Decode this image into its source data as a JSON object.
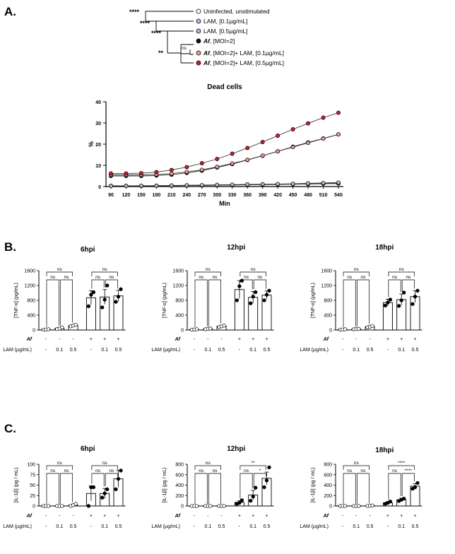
{
  "panels": {
    "A": "A.",
    "B": "B.",
    "C": "C."
  },
  "legend": {
    "items": [
      {
        "prefix": "",
        "label": "Uninfected, unstimulated",
        "fill": "#ffffff"
      },
      {
        "prefix": "",
        "label": "LAM, [0.1µg/mL]",
        "fill": "#a8bfe0"
      },
      {
        "prefix": "",
        "label": "LAM, [0.5µg/mL]",
        "fill": "#b9b3cf"
      },
      {
        "prefix": "Af",
        "label": ", [MOI=2]",
        "fill": "#111111"
      },
      {
        "prefix": "Af",
        "label": ", [MOI=2]+ LAM, [0.1µg/mL]",
        "fill": "#e79aa3"
      },
      {
        "prefix": "Af",
        "label": ", [MOI=2]+ LAM, [0.5µg/mL]",
        "fill": "#cc1e2b"
      }
    ],
    "tree_sig": [
      "****",
      "****",
      "****",
      "**",
      "ns"
    ]
  },
  "colors": {
    "red": "#cc1e2b",
    "pink": "#e79aa3",
    "black": "#111111",
    "white": "#ffffff"
  },
  "chart_data": [
    {
      "id": "dead_cells",
      "type": "line",
      "title": "Dead cells",
      "xlabel": "Min",
      "ylabel": "%",
      "x": [
        90,
        120,
        150,
        180,
        210,
        240,
        270,
        300,
        330,
        360,
        390,
        420,
        450,
        480,
        510,
        540
      ],
      "ylim": [
        0,
        40
      ],
      "yticks": [
        0,
        10,
        20,
        30,
        40
      ],
      "series": [
        {
          "name": "Uninfected, unstimulated",
          "color": "#ffffff",
          "values": [
            0.3,
            0.3,
            0.3,
            0.4,
            0.4,
            0.5,
            0.5,
            0.6,
            0.7,
            0.8,
            0.9,
            1.0,
            1.1,
            1.2,
            1.3,
            1.4
          ]
        },
        {
          "name": "LAM, [0.1µg/mL]",
          "color": "#a8bfe0",
          "values": [
            0.3,
            0.3,
            0.3,
            0.4,
            0.4,
            0.5,
            0.6,
            0.7,
            0.8,
            0.9,
            1.0,
            1.1,
            1.2,
            1.3,
            1.5,
            1.6
          ]
        },
        {
          "name": "LAM, [0.5µg/mL]",
          "color": "#b9b3cf",
          "values": [
            0.3,
            0.3,
            0.4,
            0.4,
            0.5,
            0.6,
            0.7,
            0.8,
            0.9,
            1.0,
            1.1,
            1.2,
            1.3,
            1.5,
            1.7,
            1.9
          ]
        },
        {
          "name": "Af, [MOI=2]",
          "color": "#111111",
          "values": [
            5.0,
            5.0,
            5.0,
            5.2,
            5.6,
            6.4,
            7.5,
            9.0,
            10.6,
            12.5,
            14.5,
            16.6,
            18.8,
            20.8,
            22.7,
            24.6
          ]
        },
        {
          "name": "Af, [MOI=2]+ LAM, [0.1µg/mL]",
          "color": "#e79aa3",
          "values": [
            5.5,
            5.5,
            5.5,
            5.7,
            6.1,
            6.9,
            7.9,
            9.3,
            10.9,
            12.6,
            14.6,
            16.6,
            18.6,
            20.6,
            22.6,
            24.6
          ]
        },
        {
          "name": "Af, [MOI=2]+ LAM, [0.5µg/mL]",
          "color": "#cc1e2b",
          "values": [
            6.2,
            6.2,
            6.3,
            6.8,
            7.8,
            9.2,
            11.0,
            13.0,
            15.5,
            18.2,
            21.0,
            24.0,
            27.0,
            29.8,
            32.5,
            34.8
          ]
        }
      ]
    },
    {
      "id": "tnf_6",
      "type": "bar",
      "title": "6hpi",
      "ylabel": "[TNF-α] (pg/mL)",
      "ylim": [
        0,
        1600
      ],
      "yticks": [
        0,
        400,
        800,
        1200,
        1600
      ],
      "af_row": [
        "-",
        "-",
        "-",
        "+",
        "+",
        "+"
      ],
      "lam_row": [
        "-",
        "0.1",
        "0.5",
        "-",
        "0.1",
        "0.5"
      ],
      "row_labels": {
        "af": "Af",
        "lam": "LAM (µg/mL)"
      },
      "values": [
        15,
        45,
        120,
        870,
        890,
        920
      ],
      "errors": [
        8,
        20,
        20,
        190,
        200,
        150
      ],
      "points": [
        [
          10,
          15,
          20
        ],
        [
          25,
          40,
          70
        ],
        [
          100,
          120,
          140
        ],
        [
          640,
          950,
          1020
        ],
        [
          610,
          820,
          1200
        ],
        [
          760,
          900,
          1100
        ]
      ],
      "sig": [
        {
          "a": 0,
          "b": 1,
          "label": "ns",
          "level": 1
        },
        {
          "a": 1,
          "b": 2,
          "label": "ns",
          "level": 1
        },
        {
          "a": 0,
          "b": 2,
          "label": "ns",
          "level": 2
        },
        {
          "a": 3,
          "b": 4,
          "label": "ns",
          "level": 1
        },
        {
          "a": 4,
          "b": 5,
          "label": "ns",
          "level": 1
        },
        {
          "a": 3,
          "b": 5,
          "label": "ns",
          "level": 2
        }
      ]
    },
    {
      "id": "tnf_12",
      "type": "bar",
      "title": "12hpi",
      "ylabel": "[TNF-α] (pg/mL)",
      "ylim": [
        0,
        1600
      ],
      "yticks": [
        0,
        400,
        800,
        1200,
        1600
      ],
      "af_row": [
        "-",
        "-",
        "-",
        "+",
        "+",
        "+"
      ],
      "lam_row": [
        "-",
        "0.1",
        "0.5",
        "-",
        "0.1",
        "0.5"
      ],
      "row_labels": {
        "af": "Af",
        "lam": "LAM (µg/mL)"
      },
      "values": [
        15,
        30,
        100,
        1090,
        880,
        940
      ],
      "errors": [
        5,
        10,
        20,
        240,
        160,
        110
      ],
      "points": [
        [
          10,
          15,
          20
        ],
        [
          20,
          30,
          40
        ],
        [
          80,
          100,
          120
        ],
        [
          800,
          1180,
          1330
        ],
        [
          720,
          900,
          1020
        ],
        [
          800,
          950,
          1060
        ]
      ],
      "sig": [
        {
          "a": 0,
          "b": 1,
          "label": "ns",
          "level": 1
        },
        {
          "a": 1,
          "b": 2,
          "label": "ns",
          "level": 1
        },
        {
          "a": 0,
          "b": 2,
          "label": "ns",
          "level": 2
        },
        {
          "a": 3,
          "b": 4,
          "label": "ns",
          "level": 1
        },
        {
          "a": 4,
          "b": 5,
          "label": "ns",
          "level": 1
        },
        {
          "a": 3,
          "b": 5,
          "label": "ns",
          "level": 2
        }
      ]
    },
    {
      "id": "tnf_18",
      "type": "bar",
      "title": "18hpi",
      "ylabel": "[TNF-α] (pg/mL)",
      "ylim": [
        0,
        1600
      ],
      "yticks": [
        0,
        400,
        800,
        1200,
        1600
      ],
      "af_row": [
        "-",
        "-",
        "-",
        "+",
        "+",
        "+"
      ],
      "lam_row": [
        "-",
        "0.1",
        "0.5",
        "-",
        "0.1",
        "0.5"
      ],
      "row_labels": {
        "af": "Af",
        "lam": "LAM (µg/mL)"
      },
      "values": [
        15,
        25,
        90,
        740,
        820,
        900
      ],
      "errors": [
        5,
        10,
        20,
        90,
        150,
        160
      ],
      "points": [
        [
          10,
          15,
          20
        ],
        [
          20,
          25,
          30
        ],
        [
          70,
          90,
          110
        ],
        [
          660,
          740,
          820
        ],
        [
          650,
          800,
          1010
        ],
        [
          700,
          900,
          1060
        ]
      ],
      "sig": [
        {
          "a": 0,
          "b": 1,
          "label": "ns",
          "level": 1
        },
        {
          "a": 1,
          "b": 2,
          "label": "ns",
          "level": 1
        },
        {
          "a": 0,
          "b": 2,
          "label": "ns",
          "level": 2
        },
        {
          "a": 3,
          "b": 4,
          "label": "ns",
          "level": 1
        },
        {
          "a": 4,
          "b": 5,
          "label": "ns",
          "level": 1
        },
        {
          "a": 3,
          "b": 5,
          "label": "ns",
          "level": 2
        }
      ]
    },
    {
      "id": "il1b_6",
      "type": "bar",
      "title": "6hpi",
      "ylabel": "[IL-1β] (pg / mL)",
      "ylim": [
        0,
        100
      ],
      "yticks": [
        0,
        25,
        50,
        75,
        100
      ],
      "af_row": [
        "-",
        "-",
        "-",
        "+",
        "+",
        "+"
      ],
      "lam_row": [
        "-",
        "0.1",
        "0.5",
        "-",
        "0.1",
        "0.5"
      ],
      "row_labels": {
        "af": "Af",
        "lam": "LAM (µg/mL)"
      },
      "values": [
        0,
        0,
        2,
        30,
        30,
        65
      ],
      "errors": [
        0,
        0,
        2,
        18,
        12,
        20
      ],
      "points": [
        [
          0,
          0,
          0
        ],
        [
          0,
          0,
          0
        ],
        [
          0,
          2,
          5
        ],
        [
          0,
          45,
          45
        ],
        [
          20,
          30,
          40
        ],
        [
          40,
          65,
          85
        ]
      ],
      "sig": [
        {
          "a": 0,
          "b": 1,
          "label": "ns",
          "level": 1
        },
        {
          "a": 1,
          "b": 2,
          "label": "ns",
          "level": 1
        },
        {
          "a": 0,
          "b": 2,
          "label": "ns",
          "level": 2
        },
        {
          "a": 3,
          "b": 4,
          "label": "ns",
          "level": 1
        },
        {
          "a": 4,
          "b": 5,
          "label": "ns",
          "level": 1
        },
        {
          "a": 3,
          "b": 5,
          "label": "ns",
          "level": 2
        }
      ]
    },
    {
      "id": "il1b_12",
      "type": "bar",
      "title": "12hpi",
      "ylabel": "[IL-1β] (pg / mL)",
      "ylim": [
        0,
        800
      ],
      "yticks": [
        0,
        200,
        400,
        600,
        800
      ],
      "af_row": [
        "-",
        "-",
        "-",
        "+",
        "+",
        "+"
      ],
      "lam_row": [
        "-",
        "0.1",
        "0.5",
        "-",
        "0.1",
        "0.5"
      ],
      "row_labels": {
        "af": "Af",
        "lam": "LAM (µg/mL)"
      },
      "values": [
        0,
        0,
        0,
        70,
        210,
        530
      ],
      "errors": [
        0,
        0,
        0,
        30,
        90,
        120
      ],
      "points": [
        [
          0,
          0,
          0
        ],
        [
          0,
          0,
          0
        ],
        [
          0,
          0,
          0
        ],
        [
          40,
          60,
          110
        ],
        [
          100,
          180,
          350
        ],
        [
          360,
          490,
          740
        ]
      ],
      "sig": [
        {
          "a": 0,
          "b": 1,
          "label": "ns",
          "level": 1
        },
        {
          "a": 1,
          "b": 2,
          "label": "ns",
          "level": 1
        },
        {
          "a": 0,
          "b": 2,
          "label": "ns",
          "level": 2
        },
        {
          "a": 3,
          "b": 4,
          "label": "ns",
          "level": 1
        },
        {
          "a": 4,
          "b": 5,
          "label": "*",
          "level": 1
        },
        {
          "a": 3,
          "b": 5,
          "label": "**",
          "level": 2
        }
      ]
    },
    {
      "id": "il1b_18",
      "type": "bar",
      "title": "18hpi",
      "ylabel": "[IL-1β] (pg / mL)",
      "ylim": [
        0,
        800
      ],
      "yticks": [
        0,
        200,
        400,
        600,
        800
      ],
      "af_row": [
        "-",
        "-",
        "-",
        "+",
        "+",
        "+"
      ],
      "lam_row": [
        "-",
        "0.1",
        "0.5",
        "-",
        "0.1",
        "0.5"
      ],
      "row_labels": {
        "af": "Af",
        "lam": "LAM (µg/mL)"
      },
      "values": [
        0,
        0,
        5,
        60,
        120,
        380
      ],
      "errors": [
        0,
        0,
        3,
        20,
        30,
        50
      ],
      "points": [
        [
          0,
          0,
          0
        ],
        [
          0,
          0,
          0
        ],
        [
          0,
          5,
          10
        ],
        [
          40,
          60,
          85
        ],
        [
          95,
          120,
          140
        ],
        [
          330,
          360,
          440
        ]
      ],
      "sig": [
        {
          "a": 0,
          "b": 1,
          "label": "ns",
          "level": 1
        },
        {
          "a": 1,
          "b": 2,
          "label": "ns",
          "level": 1
        },
        {
          "a": 0,
          "b": 2,
          "label": "ns",
          "level": 2
        },
        {
          "a": 3,
          "b": 4,
          "label": "ns",
          "level": 1
        },
        {
          "a": 4,
          "b": 5,
          "label": "****",
          "level": 1
        },
        {
          "a": 3,
          "b": 5,
          "label": "****",
          "level": 2
        }
      ]
    }
  ]
}
